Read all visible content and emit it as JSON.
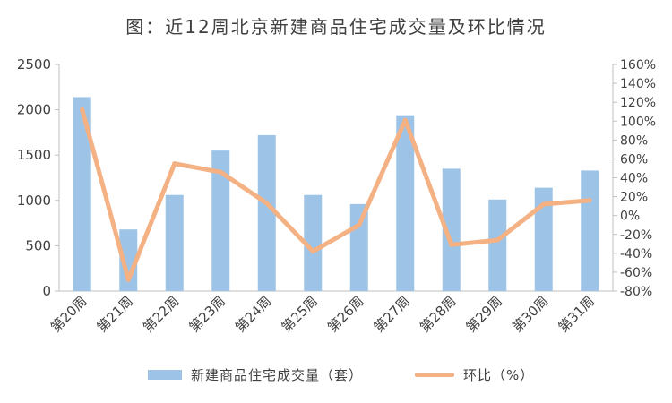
{
  "chart_data": {
    "type": "bar",
    "title": "图：近12周北京新建商品住宅成交量及环比情况",
    "categories": [
      "第20周",
      "第21周",
      "第22周",
      "第23周",
      "第24周",
      "第25周",
      "第26周",
      "第27周",
      "第28周",
      "第29周",
      "第30周",
      "第31周"
    ],
    "series": [
      {
        "name": "新建商品住宅成交量（套）",
        "type": "bar",
        "axis": "left",
        "color": "#9dc3e6",
        "values": [
          2140,
          680,
          1060,
          1550,
          1720,
          1060,
          960,
          1940,
          1350,
          1010,
          1140,
          1330
        ]
      },
      {
        "name": "环比（%）",
        "type": "line",
        "axis": "right",
        "color": "#f4b183",
        "values": [
          112,
          -68,
          55,
          46,
          13,
          -38,
          -10,
          101,
          -31,
          -26,
          12,
          16
        ]
      }
    ],
    "y_left": {
      "min": 0,
      "max": 2500,
      "ticks": [
        "0",
        "500",
        "1000",
        "1500",
        "2000",
        "2500"
      ]
    },
    "y_right": {
      "min": -80,
      "max": 160,
      "ticks": [
        "-80%",
        "-60%",
        "-40%",
        "-20%",
        "0%",
        "20%",
        "40%",
        "60%",
        "80%",
        "100%",
        "120%",
        "140%",
        "160%"
      ]
    },
    "grid": false,
    "legend_position": "bottom"
  }
}
